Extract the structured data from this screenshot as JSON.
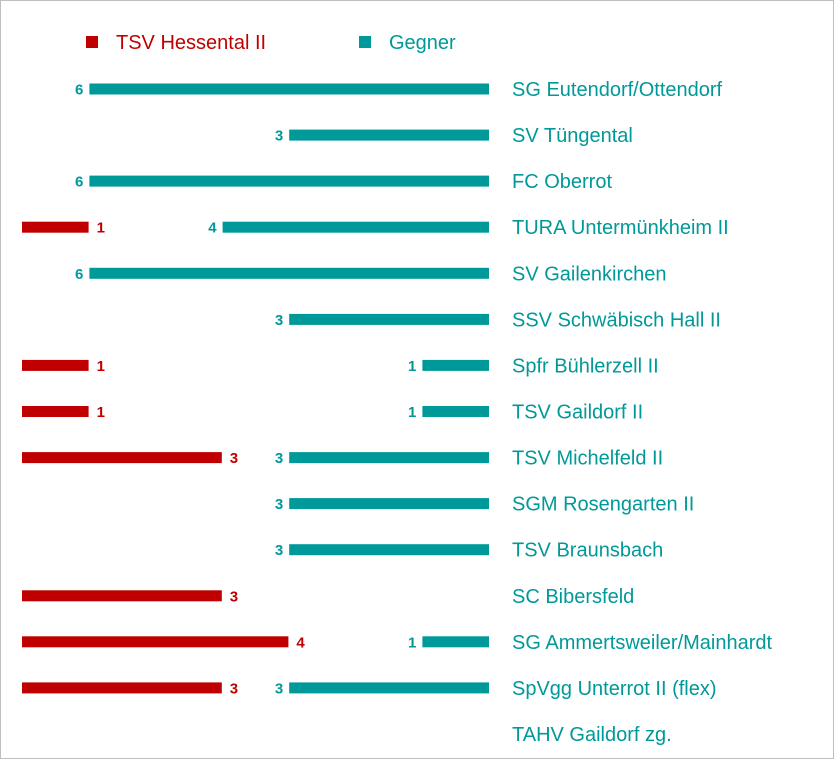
{
  "colors": {
    "home": "#c00000",
    "opponent": "#009999"
  },
  "chart_data": {
    "type": "bar",
    "legend": [
      {
        "name": "TSV Hessental II",
        "color": "#c00000"
      },
      {
        "name": "Gegner",
        "color": "#009999"
      }
    ],
    "categories": [
      "SG Eutendorf/Ottendorf",
      "SV Tüngental",
      "FC Oberrot",
      "TURA Untermünkheim II",
      "SV Gailenkirchen",
      "SSV Schwäbisch Hall II",
      "Spfr Bühlerzell II",
      "TSV Gaildorf II",
      "TSV Michelfeld II",
      "SGM Rosengarten II",
      "TSV Braunsbach",
      "SC Bibersfeld",
      "SG Ammertsweiler/Mainhardt",
      "SpVgg Unterrot II (flex)",
      "TAHV Gaildorf zg."
    ],
    "series": [
      {
        "name": "TSV Hessental II",
        "values": [
          0,
          0,
          0,
          1,
          0,
          0,
          1,
          1,
          3,
          0,
          0,
          3,
          4,
          3,
          0
        ]
      },
      {
        "name": "Gegner",
        "values": [
          6,
          3,
          6,
          4,
          6,
          3,
          1,
          1,
          3,
          3,
          3,
          0,
          1,
          3,
          0
        ]
      }
    ],
    "legend_position": "top",
    "grid": false
  }
}
